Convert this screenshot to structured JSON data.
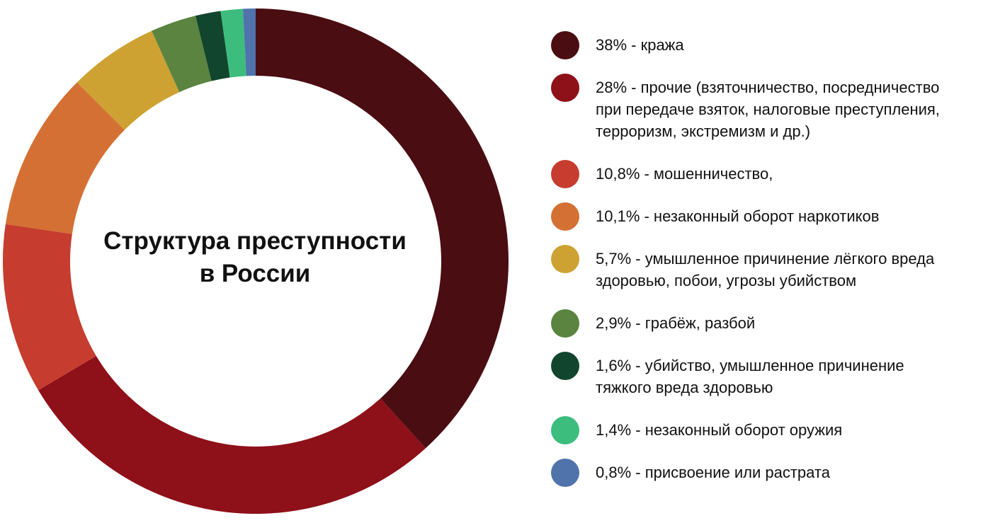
{
  "chart_data": {
    "type": "pie",
    "title": "Структура преступности в России",
    "title_lines": [
      "Структура преступности",
      "в России"
    ],
    "legend_placement": "right",
    "categories": [
      "38% - кража",
      "28% - прочие (взяточничество, посредничество при передаче взяток, налоговые преступления, терроризм, экстремизм и др.)",
      "10,8% - мошенничество,",
      "10,1% - незаконный оборот наркотиков",
      "5,7% - умышленное причинение лёгкого вреда здоровью, побои, угрозы убийством",
      "2,9% - грабёж, разбой",
      "1,6% - убийство, умышленное причинение тяжкого вреда здоровью",
      "1,4% - незаконный оборот оружия",
      "0,8% - присвоение или растрата"
    ],
    "values": [
      38,
      28,
      10.8,
      10.1,
      5.7,
      2.9,
      1.6,
      1.4,
      0.8
    ],
    "colors": [
      "#4a0d12",
      "#8e1019",
      "#c63c2e",
      "#d47034",
      "#cda232",
      "#5a843f",
      "#12452d",
      "#3dbd7d",
      "#5073ab"
    ],
    "legend_lines": [
      [
        "38% - кража"
      ],
      [
        "28% - прочие (взяточничество, посредничество",
        "при передаче взяток, налоговые преступления,",
        "терроризм, экстремизм и др.)"
      ],
      [
        "10,8% - мошенничество,"
      ],
      [
        "10,1% - незаконный оборот наркотиков"
      ],
      [
        "5,7% - умышленное причинение лёгкого вреда",
        "здоровью, побои, угрозы убийством"
      ],
      [
        "2,9% - грабёж, разбой"
      ],
      [
        "1,6% - убийство, умышленное причинение",
        "тяжкого вреда здоровью"
      ],
      [
        "1,4% - незаконный оборот оружия"
      ],
      [
        "0,8% - присвоение или растрата"
      ]
    ]
  }
}
